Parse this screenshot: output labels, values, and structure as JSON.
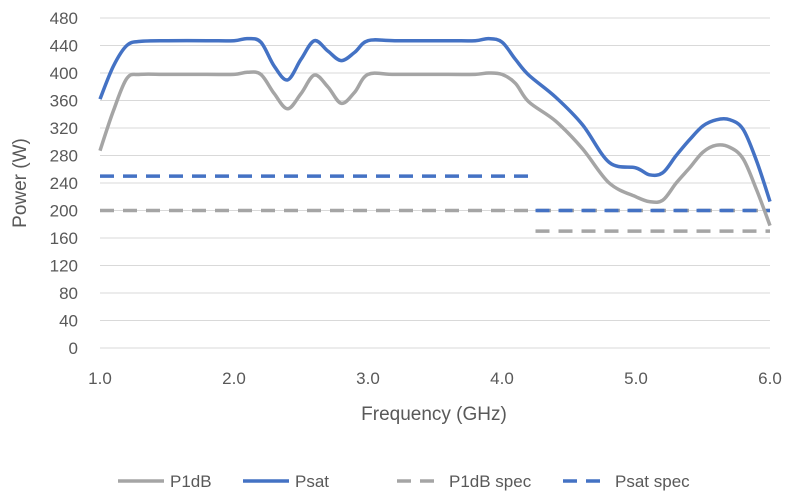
{
  "chart_data": {
    "type": "line",
    "title": "",
    "xlabel": "Frequency (GHz)",
    "ylabel": "Power (W)",
    "xlim": [
      1.0,
      6.0
    ],
    "ylim": [
      0,
      480
    ],
    "x_ticks": [
      "1.0",
      "2.0",
      "3.0",
      "4.0",
      "5.0",
      "6.0"
    ],
    "y_ticks": [
      "0",
      "40",
      "80",
      "120",
      "160",
      "200",
      "240",
      "280",
      "320",
      "360",
      "400",
      "440",
      "480"
    ],
    "grid": "horizontal",
    "legend_position": "bottom",
    "series": [
      {
        "name": "P1dB",
        "color": "#A5A5A5",
        "dash": false,
        "points": [
          [
            1.0,
            287
          ],
          [
            1.1,
            345
          ],
          [
            1.2,
            392
          ],
          [
            1.3,
            398
          ],
          [
            1.5,
            398
          ],
          [
            1.8,
            398
          ],
          [
            2.0,
            398
          ],
          [
            2.1,
            401
          ],
          [
            2.2,
            398
          ],
          [
            2.3,
            370
          ],
          [
            2.4,
            348
          ],
          [
            2.5,
            370
          ],
          [
            2.6,
            397
          ],
          [
            2.7,
            380
          ],
          [
            2.8,
            356
          ],
          [
            2.9,
            372
          ],
          [
            3.0,
            398
          ],
          [
            3.2,
            398
          ],
          [
            3.6,
            398
          ],
          [
            3.8,
            398
          ],
          [
            3.9,
            400
          ],
          [
            4.0,
            398
          ],
          [
            4.1,
            385
          ],
          [
            4.2,
            358
          ],
          [
            4.4,
            330
          ],
          [
            4.6,
            290
          ],
          [
            4.8,
            240
          ],
          [
            5.0,
            220
          ],
          [
            5.1,
            213
          ],
          [
            5.2,
            215
          ],
          [
            5.3,
            240
          ],
          [
            5.4,
            262
          ],
          [
            5.5,
            285
          ],
          [
            5.6,
            295
          ],
          [
            5.7,
            292
          ],
          [
            5.8,
            275
          ],
          [
            5.9,
            230
          ],
          [
            6.0,
            178
          ]
        ]
      },
      {
        "name": "Psat",
        "color": "#4472C4",
        "dash": false,
        "points": [
          [
            1.0,
            362
          ],
          [
            1.1,
            410
          ],
          [
            1.2,
            440
          ],
          [
            1.3,
            446
          ],
          [
            1.5,
            447
          ],
          [
            1.8,
            447
          ],
          [
            2.0,
            447
          ],
          [
            2.1,
            450
          ],
          [
            2.2,
            445
          ],
          [
            2.3,
            410
          ],
          [
            2.4,
            390
          ],
          [
            2.5,
            420
          ],
          [
            2.6,
            447
          ],
          [
            2.7,
            432
          ],
          [
            2.8,
            418
          ],
          [
            2.9,
            430
          ],
          [
            3.0,
            447
          ],
          [
            3.2,
            447
          ],
          [
            3.6,
            447
          ],
          [
            3.8,
            447
          ],
          [
            3.9,
            450
          ],
          [
            4.0,
            445
          ],
          [
            4.1,
            420
          ],
          [
            4.2,
            397
          ],
          [
            4.4,
            365
          ],
          [
            4.6,
            325
          ],
          [
            4.8,
            270
          ],
          [
            5.0,
            262
          ],
          [
            5.1,
            252
          ],
          [
            5.2,
            255
          ],
          [
            5.3,
            280
          ],
          [
            5.4,
            303
          ],
          [
            5.5,
            323
          ],
          [
            5.6,
            332
          ],
          [
            5.7,
            332
          ],
          [
            5.8,
            318
          ],
          [
            5.9,
            272
          ],
          [
            6.0,
            213
          ]
        ]
      },
      {
        "name": "P1dB spec",
        "color": "#A5A5A5",
        "dash": true,
        "points": [
          [
            1.0,
            200
          ],
          [
            6.0,
            200
          ]
        ],
        "extra_segment": [
          [
            4.25,
            170
          ],
          [
            6.0,
            170
          ]
        ]
      },
      {
        "name": "Psat spec",
        "color": "#4472C4",
        "dash": true,
        "points": [
          [
            1.0,
            250
          ],
          [
            4.25,
            250
          ]
        ],
        "extra_segment": [
          [
            4.25,
            200
          ],
          [
            6.0,
            200
          ]
        ]
      }
    ]
  }
}
